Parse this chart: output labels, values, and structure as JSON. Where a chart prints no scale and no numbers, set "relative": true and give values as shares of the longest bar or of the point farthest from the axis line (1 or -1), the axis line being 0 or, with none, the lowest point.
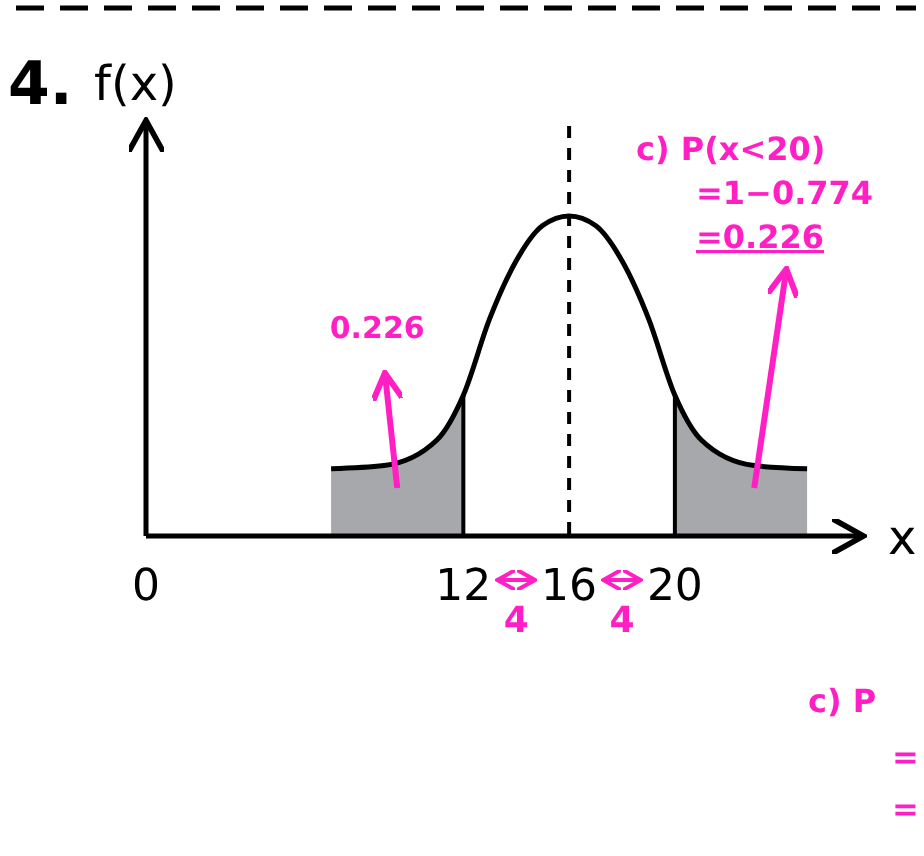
{
  "chart_data": {
    "type": "line",
    "title": "4.",
    "ylabel": "f(x)",
    "xlabel": "x",
    "relative": true,
    "xlim": [
      0,
      27
    ],
    "xticks": [
      0,
      12,
      16,
      20
    ],
    "tick_labels": "x",
    "series": [
      {
        "type": "line",
        "color": "#000000",
        "x": [
          7,
          9,
          11,
          12,
          13,
          14,
          15,
          16,
          17,
          18,
          19,
          20,
          21,
          23,
          25
        ],
        "values": [
          0.21,
          0.22,
          0.3,
          0.44,
          0.68,
          0.86,
          0.97,
          1,
          0.97,
          0.86,
          0.68,
          0.44,
          0.3,
          0.22,
          0.21
        ]
      },
      {
        "type": "area",
        "color": "#a7a8ab",
        "x": [
          7,
          9,
          11,
          12
        ],
        "values": [
          0.21,
          0.22,
          0.3,
          0.44
        ]
      },
      {
        "type": "area",
        "color": "#a7a8ab",
        "x": [
          20,
          21,
          23,
          25
        ],
        "values": [
          0.44,
          0.3,
          0.22,
          0.21
        ]
      }
    ],
    "ref_lines": [
      {
        "axis": "x",
        "value": 16,
        "line_style": "dashed",
        "color": "#000000"
      }
    ],
    "annotations": [
      "0.226",
      "c) P(x<20)",
      "=1−0.774",
      "=0.226",
      "4",
      "4",
      "c) P",
      "=",
      "="
    ]
  }
}
